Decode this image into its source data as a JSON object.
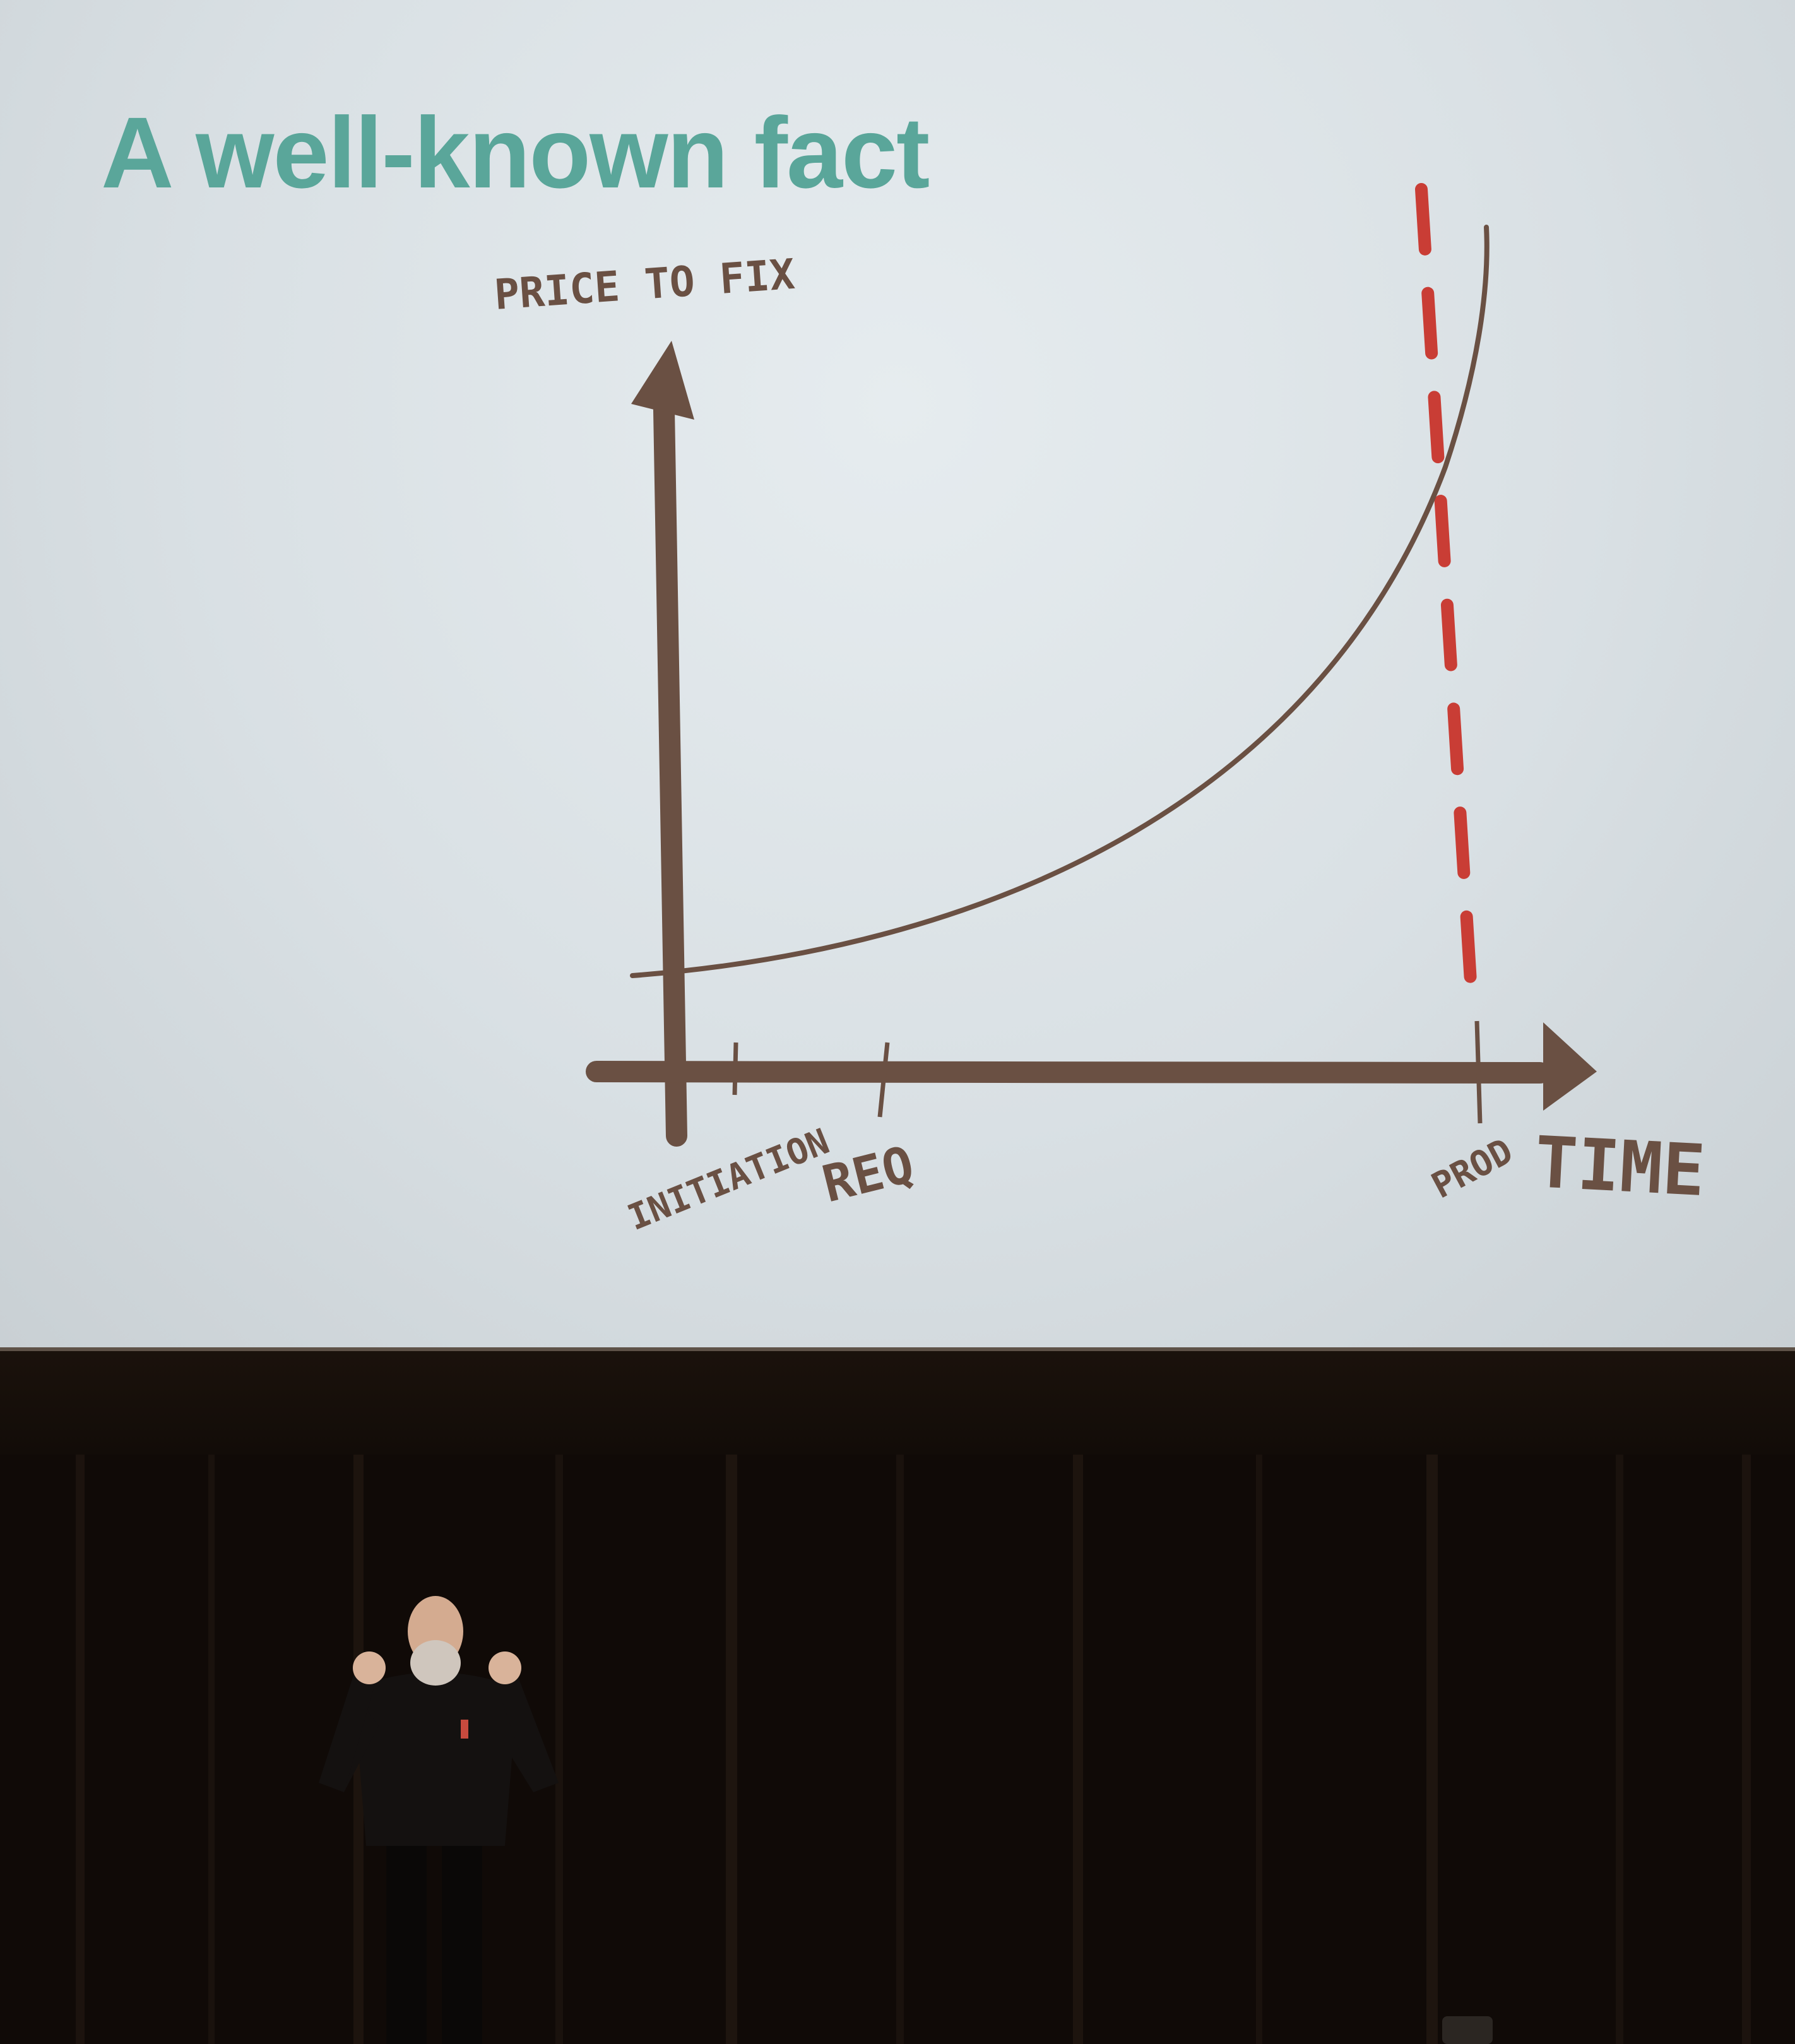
{
  "slide": {
    "title": "A well-known fact",
    "y_label": "PRICE TO FIX",
    "x_label": "TIME",
    "milestones": [
      "INITIATION",
      "REQ",
      "PROD"
    ]
  },
  "colors": {
    "title": "#5aa69a",
    "ink": "#6a5043",
    "cutoff": "#c93d35",
    "screen": "#dfe5e8",
    "stage": "#0d0906"
  }
}
